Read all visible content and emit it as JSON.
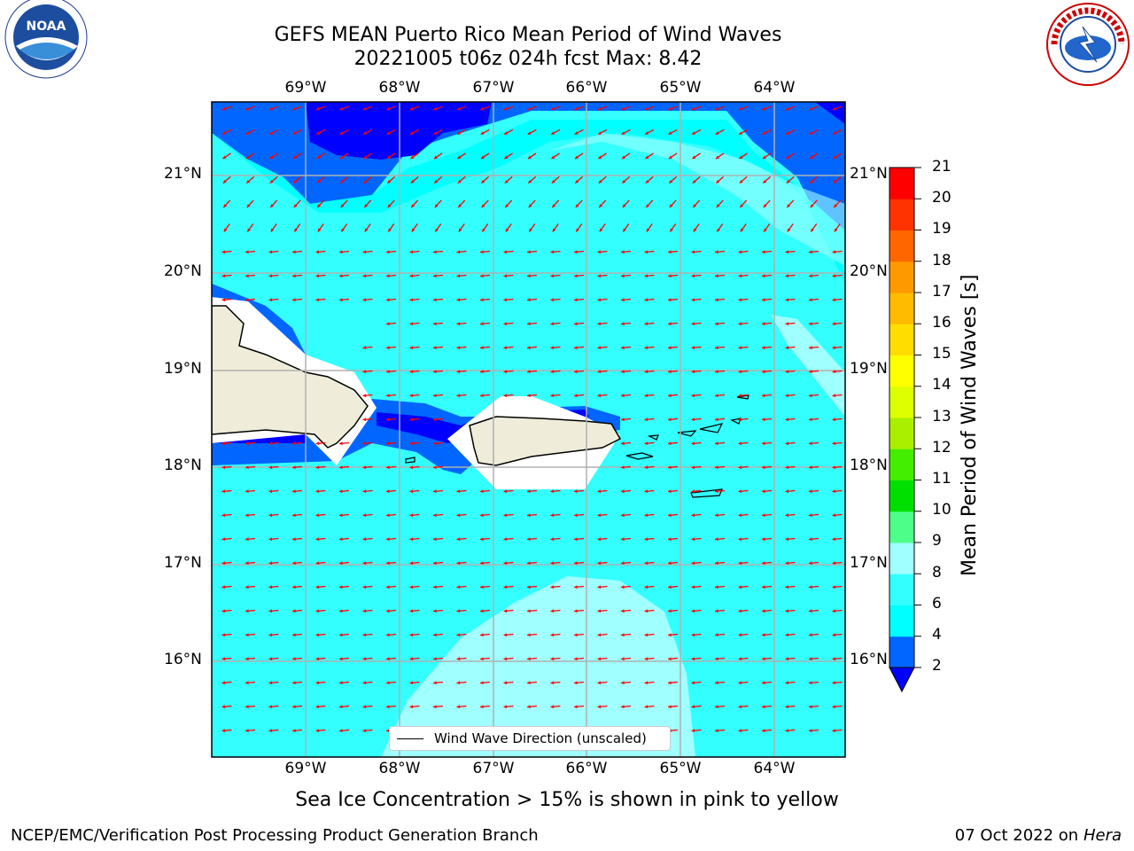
{
  "title_line1": "GEFS MEAN Puerto Rico Mean Period of Wind Waves",
  "title_line2": "20221005 t06z 024h fcst   Max: 8.42",
  "subtitle": "Sea Ice Concentration > 15% is shown in pink to yellow",
  "footer_left": "NCEP/EMC/Verification Post Processing Product Generation Branch",
  "footer_right_prefix": "07 Oct 2022 on ",
  "footer_right_host": "Hera",
  "legend_label": "Wind Wave Direction (unscaled)",
  "colorbar_label": "Mean Period of Wind Waves [s]",
  "colorbar_ticks": [
    "2",
    "4",
    "6",
    "8",
    "9",
    "10",
    "11",
    "12",
    "13",
    "14",
    "15",
    "16",
    "17",
    "18",
    "19",
    "20",
    "21"
  ],
  "colorbar_colors": [
    "#0000ff",
    "#0066ff",
    "#00ffff",
    "#33ffff",
    "#a0ffff",
    "#4dff88",
    "#00e000",
    "#44ee00",
    "#aaee00",
    "#ddff00",
    "#ffff00",
    "#ffdd00",
    "#ffbb00",
    "#ff9900",
    "#ff6600",
    "#ff3300",
    "#ff0000"
  ],
  "lon_labels": [
    "69°W",
    "68°W",
    "67°W",
    "66°W",
    "65°W",
    "64°W"
  ],
  "lat_labels": [
    "21°N",
    "20°N",
    "19°N",
    "18°N",
    "17°N",
    "16°N"
  ],
  "logos": {
    "left": "noaa-logo",
    "right": "nws-logo"
  },
  "colors": {
    "ocean_light": "#33ffff",
    "ocean_pale": "#a0ffff",
    "ocean_cyan": "#00ffff",
    "deep_blue": "#0000ff",
    "mid_blue": "#0066ff",
    "land": "#efedd9",
    "arrow": "#ff0000"
  }
}
